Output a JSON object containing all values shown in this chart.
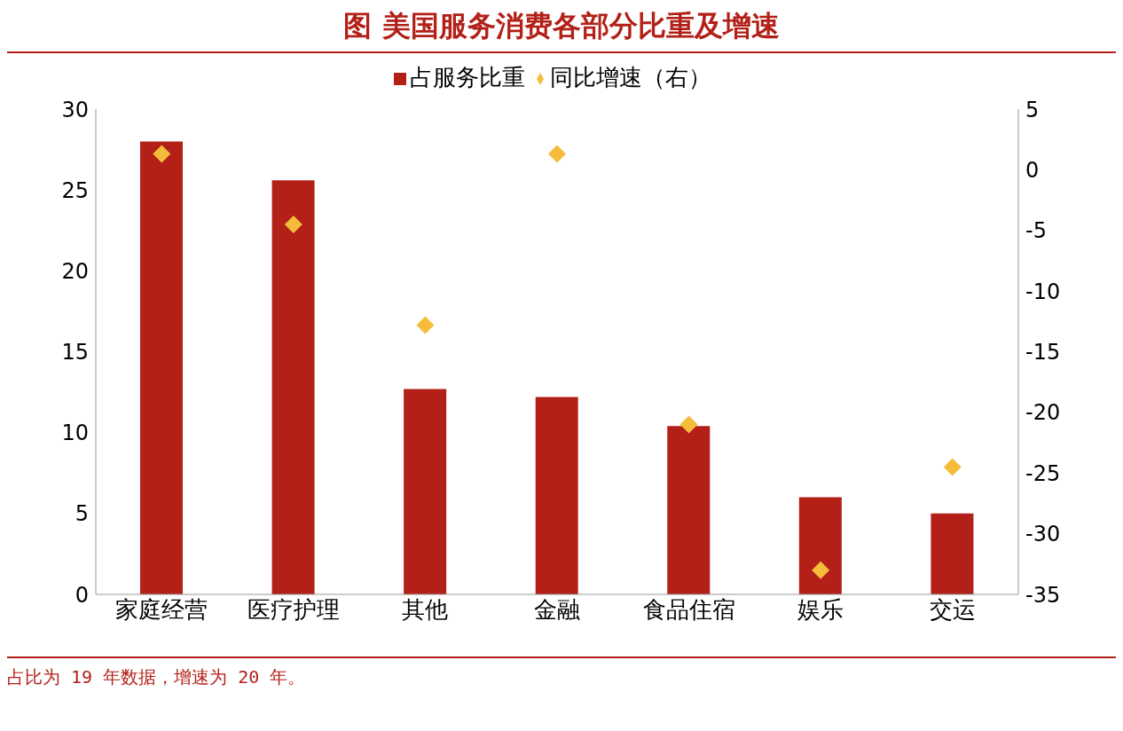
{
  "chart_data": {
    "type": "bar",
    "title": "图  美国服务消费各部分比重及增速",
    "categories": [
      "家庭经营",
      "医疗护理",
      "其他",
      "金融",
      "食品住宿",
      "娱乐",
      "交运"
    ],
    "series": [
      {
        "name": "占服务比重",
        "color": "#b22018",
        "values": [
          28,
          25.6,
          12.7,
          12.2,
          10.4,
          6.0,
          5.0
        ]
      },
      {
        "name": "同比增速（右）",
        "type": "scatter",
        "axis": "y2",
        "marker": "diamond",
        "color": "#f5bc3c",
        "values": [
          1.3,
          -4.5,
          -12.8,
          1.3,
          -21,
          -33,
          -24.5
        ]
      }
    ],
    "ylim": [
      0,
      30
    ],
    "yticks": [
      0,
      5,
      10,
      15,
      20,
      25,
      30
    ],
    "y2lim": [
      -35,
      5
    ],
    "y2ticks": [
      -35,
      -30,
      -25,
      -20,
      -15,
      -10,
      -5,
      0,
      5
    ],
    "legend": "top",
    "annotations": [
      "占比为 19 年数据，增速为 20 年。"
    ]
  }
}
